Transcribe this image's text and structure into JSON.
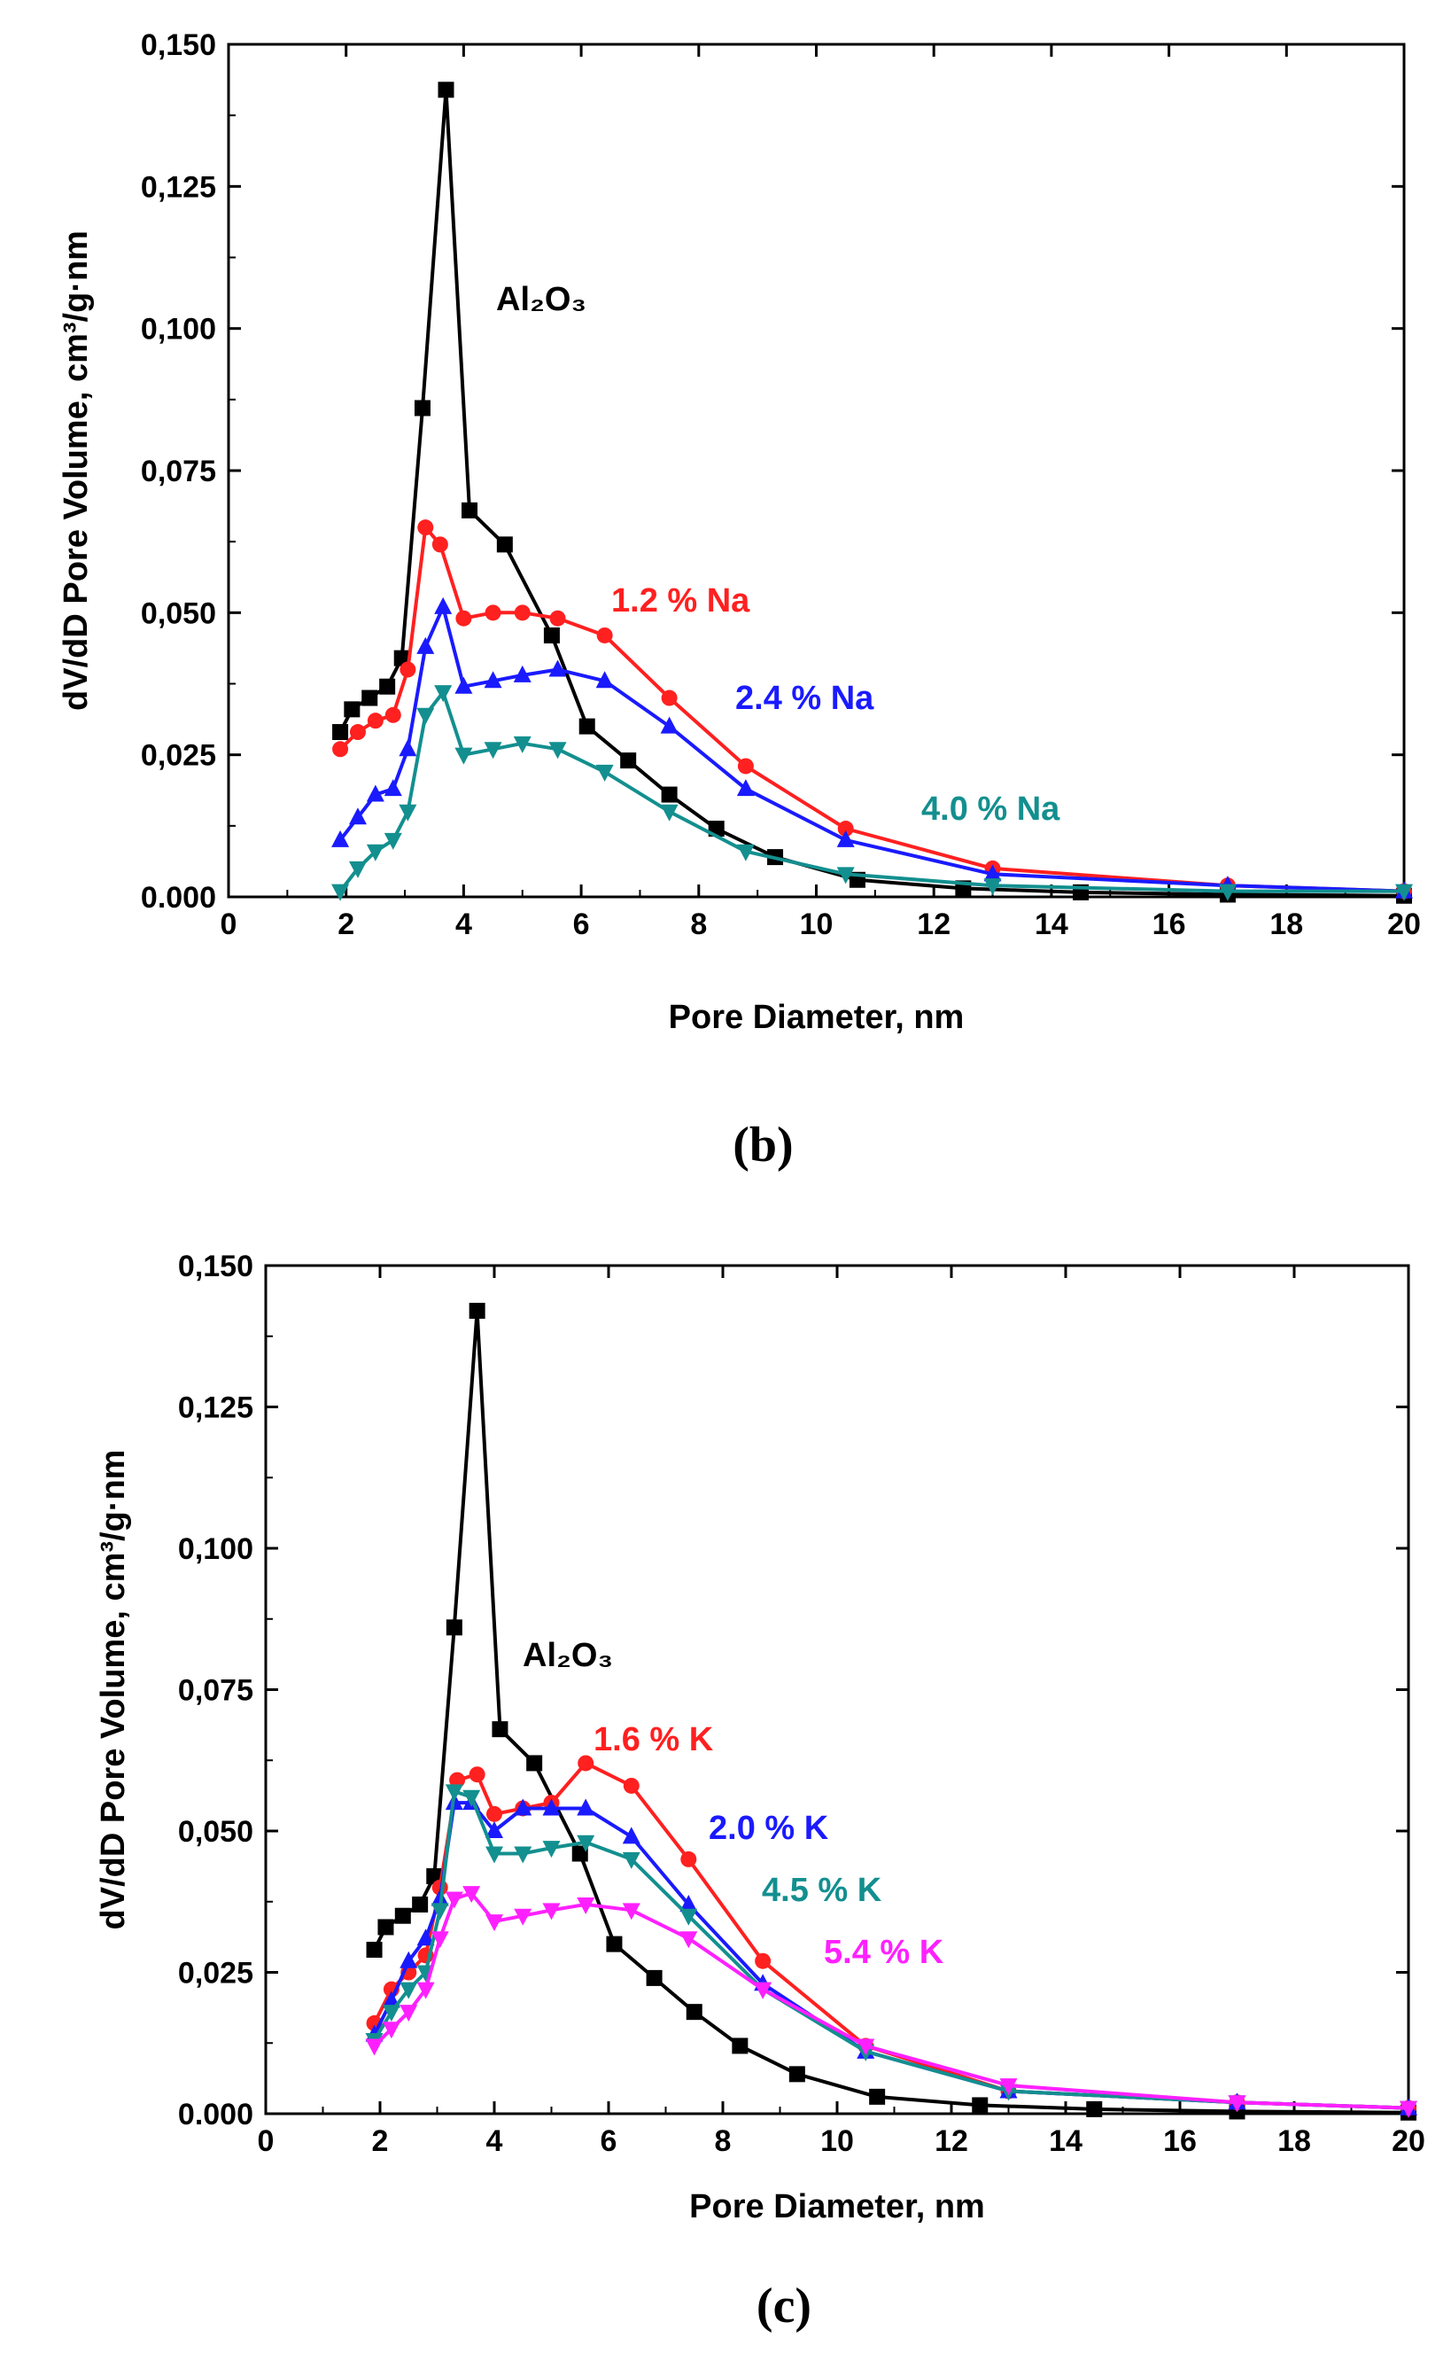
{
  "chart_data": [
    {
      "type": "line",
      "panel_label": "(b)",
      "xlabel": "Pore Diameter, nm",
      "ylabel": "dV/dD Pore Volume, cm³/g·nm",
      "xlim": [
        0,
        20
      ],
      "ylim": [
        0,
        0.15
      ],
      "xticks": [
        "0",
        "2",
        "4",
        "6",
        "8",
        "10",
        "12",
        "14",
        "16",
        "18",
        "20"
      ],
      "yticks": [
        "0.000",
        "0,025",
        "0,050",
        "0,075",
        "0,100",
        "0,125",
        "0,150"
      ],
      "series": [
        {
          "name": "Al2O3",
          "label": "Al₂O₃",
          "color": "#000000",
          "marker": "square",
          "x": [
            1.9,
            2.1,
            2.4,
            2.7,
            2.95,
            3.3,
            3.7,
            4.1,
            4.7,
            5.5,
            6.1,
            6.8,
            7.5,
            8.3,
            9.3,
            10.7,
            12.5,
            14.5,
            17.0,
            20.0
          ],
          "y": [
            0.029,
            0.033,
            0.035,
            0.037,
            0.042,
            0.086,
            0.142,
            0.068,
            0.062,
            0.046,
            0.03,
            0.024,
            0.018,
            0.012,
            0.007,
            0.003,
            0.0015,
            0.0008,
            0.0004,
            0.0002
          ]
        },
        {
          "name": "1.2 % Na",
          "label": "1.2 % Na",
          "color": "#ff2020",
          "marker": "circle",
          "x": [
            1.9,
            2.2,
            2.5,
            2.8,
            3.05,
            3.35,
            3.6,
            4.0,
            4.5,
            5.0,
            5.6,
            6.4,
            7.5,
            8.8,
            10.5,
            13.0,
            17.0,
            20.0
          ],
          "y": [
            0.026,
            0.029,
            0.031,
            0.032,
            0.04,
            0.065,
            0.062,
            0.049,
            0.05,
            0.05,
            0.049,
            0.046,
            0.035,
            0.023,
            0.012,
            0.005,
            0.002,
            0.001
          ]
        },
        {
          "name": "2.4 % Na",
          "label": "2.4 % Na",
          "color": "#1a1aff",
          "marker": "triangle-up",
          "x": [
            1.9,
            2.2,
            2.5,
            2.8,
            3.05,
            3.35,
            3.65,
            4.0,
            4.5,
            5.0,
            5.6,
            6.4,
            7.5,
            8.8,
            10.5,
            13.0,
            17.0,
            20.0
          ],
          "y": [
            0.01,
            0.014,
            0.018,
            0.019,
            0.026,
            0.044,
            0.051,
            0.037,
            0.038,
            0.039,
            0.04,
            0.038,
            0.03,
            0.019,
            0.01,
            0.004,
            0.002,
            0.001
          ]
        },
        {
          "name": "4.0 % Na",
          "label": "4.0 % Na",
          "color": "#138f8f",
          "marker": "triangle-down",
          "x": [
            1.9,
            2.2,
            2.5,
            2.8,
            3.05,
            3.35,
            3.65,
            4.0,
            4.5,
            5.0,
            5.6,
            6.4,
            7.5,
            8.8,
            10.5,
            13.0,
            17.0,
            20.0
          ],
          "y": [
            0.001,
            0.005,
            0.008,
            0.01,
            0.015,
            0.032,
            0.036,
            0.025,
            0.026,
            0.027,
            0.026,
            0.022,
            0.015,
            0.008,
            0.004,
            0.002,
            0.001,
            0.001
          ]
        }
      ]
    },
    {
      "type": "line",
      "panel_label": "(c)",
      "xlabel": "Pore Diameter, nm",
      "ylabel": "dV/dD Pore Volume, cm³/g·nm",
      "xlim": [
        0,
        20
      ],
      "ylim": [
        0,
        0.15
      ],
      "xticks": [
        "0",
        "2",
        "4",
        "6",
        "8",
        "10",
        "12",
        "14",
        "16",
        "18",
        "20"
      ],
      "yticks": [
        "0.000",
        "0,025",
        "0,050",
        "0,075",
        "0,100",
        "0,125",
        "0,150"
      ],
      "series": [
        {
          "name": "Al2O3",
          "label": "Al₂O₃",
          "color": "#000000",
          "marker": "square",
          "x": [
            1.9,
            2.1,
            2.4,
            2.7,
            2.95,
            3.3,
            3.7,
            4.1,
            4.7,
            5.5,
            6.1,
            6.8,
            7.5,
            8.3,
            9.3,
            10.7,
            12.5,
            14.5,
            17.0,
            20.0
          ],
          "y": [
            0.029,
            0.033,
            0.035,
            0.037,
            0.042,
            0.086,
            0.142,
            0.068,
            0.062,
            0.046,
            0.03,
            0.024,
            0.018,
            0.012,
            0.007,
            0.003,
            0.0015,
            0.0008,
            0.0004,
            0.0002
          ]
        },
        {
          "name": "1.6 % K",
          "label": "1.6 % K",
          "color": "#ff2020",
          "marker": "circle",
          "x": [
            1.9,
            2.2,
            2.5,
            2.8,
            3.05,
            3.35,
            3.7,
            4.0,
            4.5,
            5.0,
            5.6,
            6.4,
            7.4,
            8.7,
            10.5,
            13.0,
            17.0,
            20.0
          ],
          "y": [
            0.016,
            0.022,
            0.025,
            0.028,
            0.04,
            0.059,
            0.06,
            0.053,
            0.054,
            0.055,
            0.062,
            0.058,
            0.045,
            0.027,
            0.012,
            0.004,
            0.002,
            0.001
          ]
        },
        {
          "name": "2.0 % K",
          "label": "2.0 % K",
          "color": "#1a1aff",
          "marker": "triangle-up",
          "x": [
            1.9,
            2.2,
            2.5,
            2.8,
            3.05,
            3.3,
            3.6,
            4.0,
            4.5,
            5.0,
            5.6,
            6.4,
            7.4,
            8.7,
            10.5,
            13.0,
            17.0,
            20.0
          ],
          "y": [
            0.014,
            0.02,
            0.027,
            0.031,
            0.038,
            0.055,
            0.055,
            0.05,
            0.054,
            0.054,
            0.054,
            0.049,
            0.037,
            0.023,
            0.011,
            0.004,
            0.002,
            0.001
          ]
        },
        {
          "name": "4.5 % K",
          "label": "4.5 % K",
          "color": "#138f8f",
          "marker": "triangle-down",
          "x": [
            1.9,
            2.2,
            2.5,
            2.8,
            3.05,
            3.3,
            3.6,
            4.0,
            4.5,
            5.0,
            5.6,
            6.4,
            7.4,
            8.7,
            10.5,
            13.0,
            17.0,
            20.0
          ],
          "y": [
            0.013,
            0.018,
            0.022,
            0.025,
            0.036,
            0.057,
            0.056,
            0.046,
            0.046,
            0.047,
            0.048,
            0.045,
            0.035,
            0.022,
            0.011,
            0.004,
            0.002,
            0.001
          ]
        },
        {
          "name": "5.4 % K",
          "label": "5.4 % K",
          "color": "#ff20ff",
          "marker": "triangle-down",
          "x": [
            1.9,
            2.2,
            2.5,
            2.8,
            3.05,
            3.3,
            3.6,
            4.0,
            4.5,
            5.0,
            5.6,
            6.4,
            7.4,
            8.7,
            10.5,
            13.0,
            17.0,
            20.0
          ],
          "y": [
            0.012,
            0.015,
            0.018,
            0.022,
            0.031,
            0.038,
            0.039,
            0.034,
            0.035,
            0.036,
            0.037,
            0.036,
            0.031,
            0.022,
            0.012,
            0.005,
            0.002,
            0.001
          ]
        }
      ]
    }
  ]
}
